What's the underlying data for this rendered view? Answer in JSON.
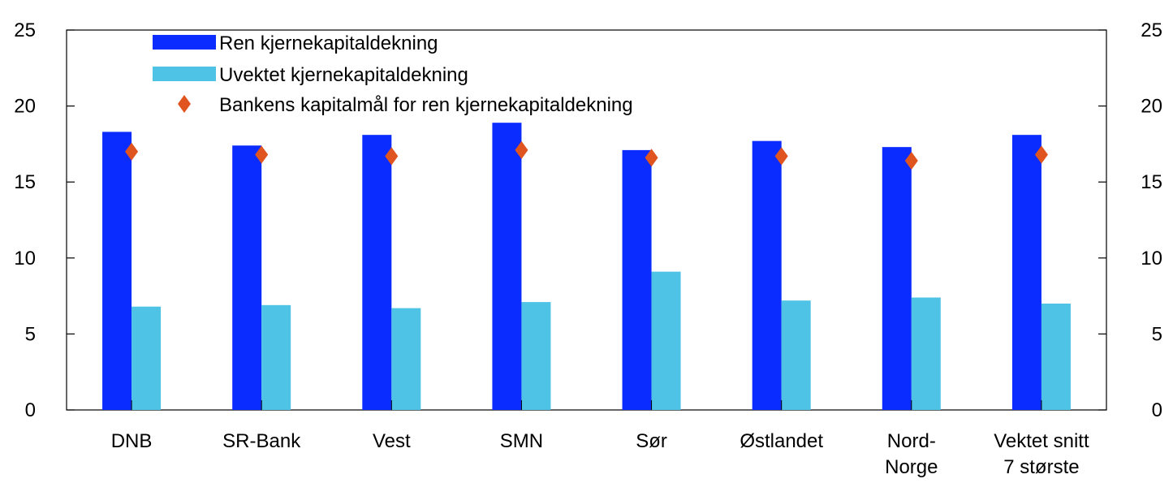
{
  "chart_data": {
    "type": "bar",
    "categories": [
      [
        "DNB"
      ],
      [
        "SR-Bank"
      ],
      [
        "Vest"
      ],
      [
        "SMN"
      ],
      [
        "Sør"
      ],
      [
        "Østlandet"
      ],
      [
        "Nord-",
        "Norge"
      ],
      [
        "Vektet snitt",
        "7 største"
      ]
    ],
    "series": [
      {
        "name": "Ren kjernekapitaldekning",
        "kind": "bar",
        "color": "#0a2cff",
        "values": [
          18.3,
          17.4,
          18.1,
          18.9,
          17.1,
          17.7,
          17.3,
          18.1
        ]
      },
      {
        "name": "Uvektet kjernekapitaldekning",
        "kind": "bar",
        "color": "#4ec3e6",
        "values": [
          6.8,
          6.9,
          6.7,
          7.1,
          9.1,
          7.2,
          7.4,
          7.0
        ]
      },
      {
        "name": "Bankens kapitalmål for ren kjernekapitaldekning",
        "kind": "marker",
        "color": "#e0551f",
        "values": [
          17.0,
          16.8,
          16.7,
          17.1,
          16.6,
          16.7,
          16.4,
          16.8
        ]
      }
    ],
    "ylim": [
      0,
      25
    ],
    "yticks": [
      0,
      5,
      10,
      15,
      20,
      25
    ],
    "y_axis_sides": [
      "left",
      "right"
    ],
    "legend_position": "top-left",
    "grid": false
  }
}
